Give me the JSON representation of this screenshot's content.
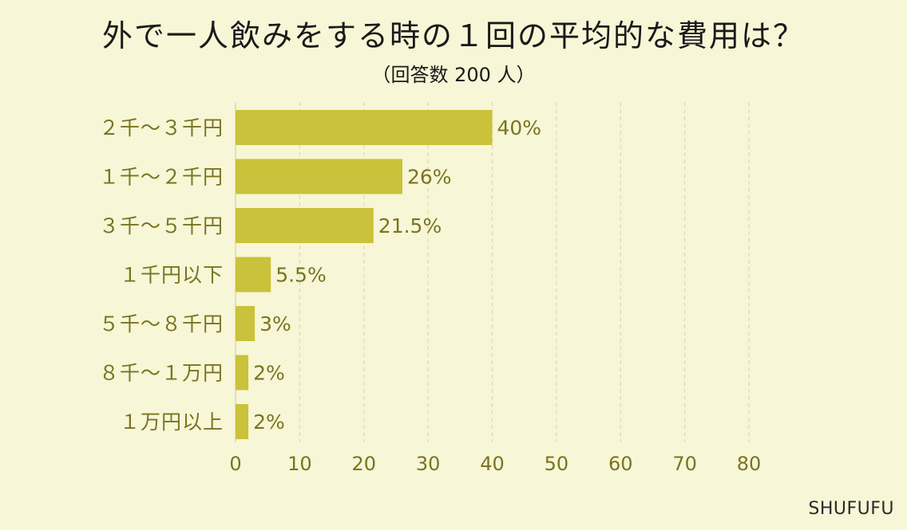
{
  "title": "外で一人飲みをする時の１回の平均的な費用は？",
  "subtitle": "（回答数 200 人）",
  "brand": "SHUFUFU",
  "colors": {
    "bar": "#c9c23a",
    "label": "#7a7420",
    "background": "#f7f6d6",
    "title": "#1a1a1a"
  },
  "chart_data": {
    "type": "bar",
    "orientation": "horizontal",
    "categories": [
      "２千～３千円",
      "１千～２千円",
      "３千～５千円",
      "１千円以下",
      "５千～８千円",
      "８千～１万円",
      "１万円以上"
    ],
    "values": [
      40,
      26,
      21.5,
      5.5,
      3,
      2,
      2
    ],
    "data_labels": [
      "40%",
      "26%",
      "21.5%",
      "5.5%",
      "3%",
      "2%",
      "2%"
    ],
    "xlim": [
      0,
      80
    ],
    "xticks": [
      "0",
      "10",
      "20",
      "30",
      "40",
      "50",
      "60",
      "70",
      "80"
    ],
    "grid": true
  }
}
